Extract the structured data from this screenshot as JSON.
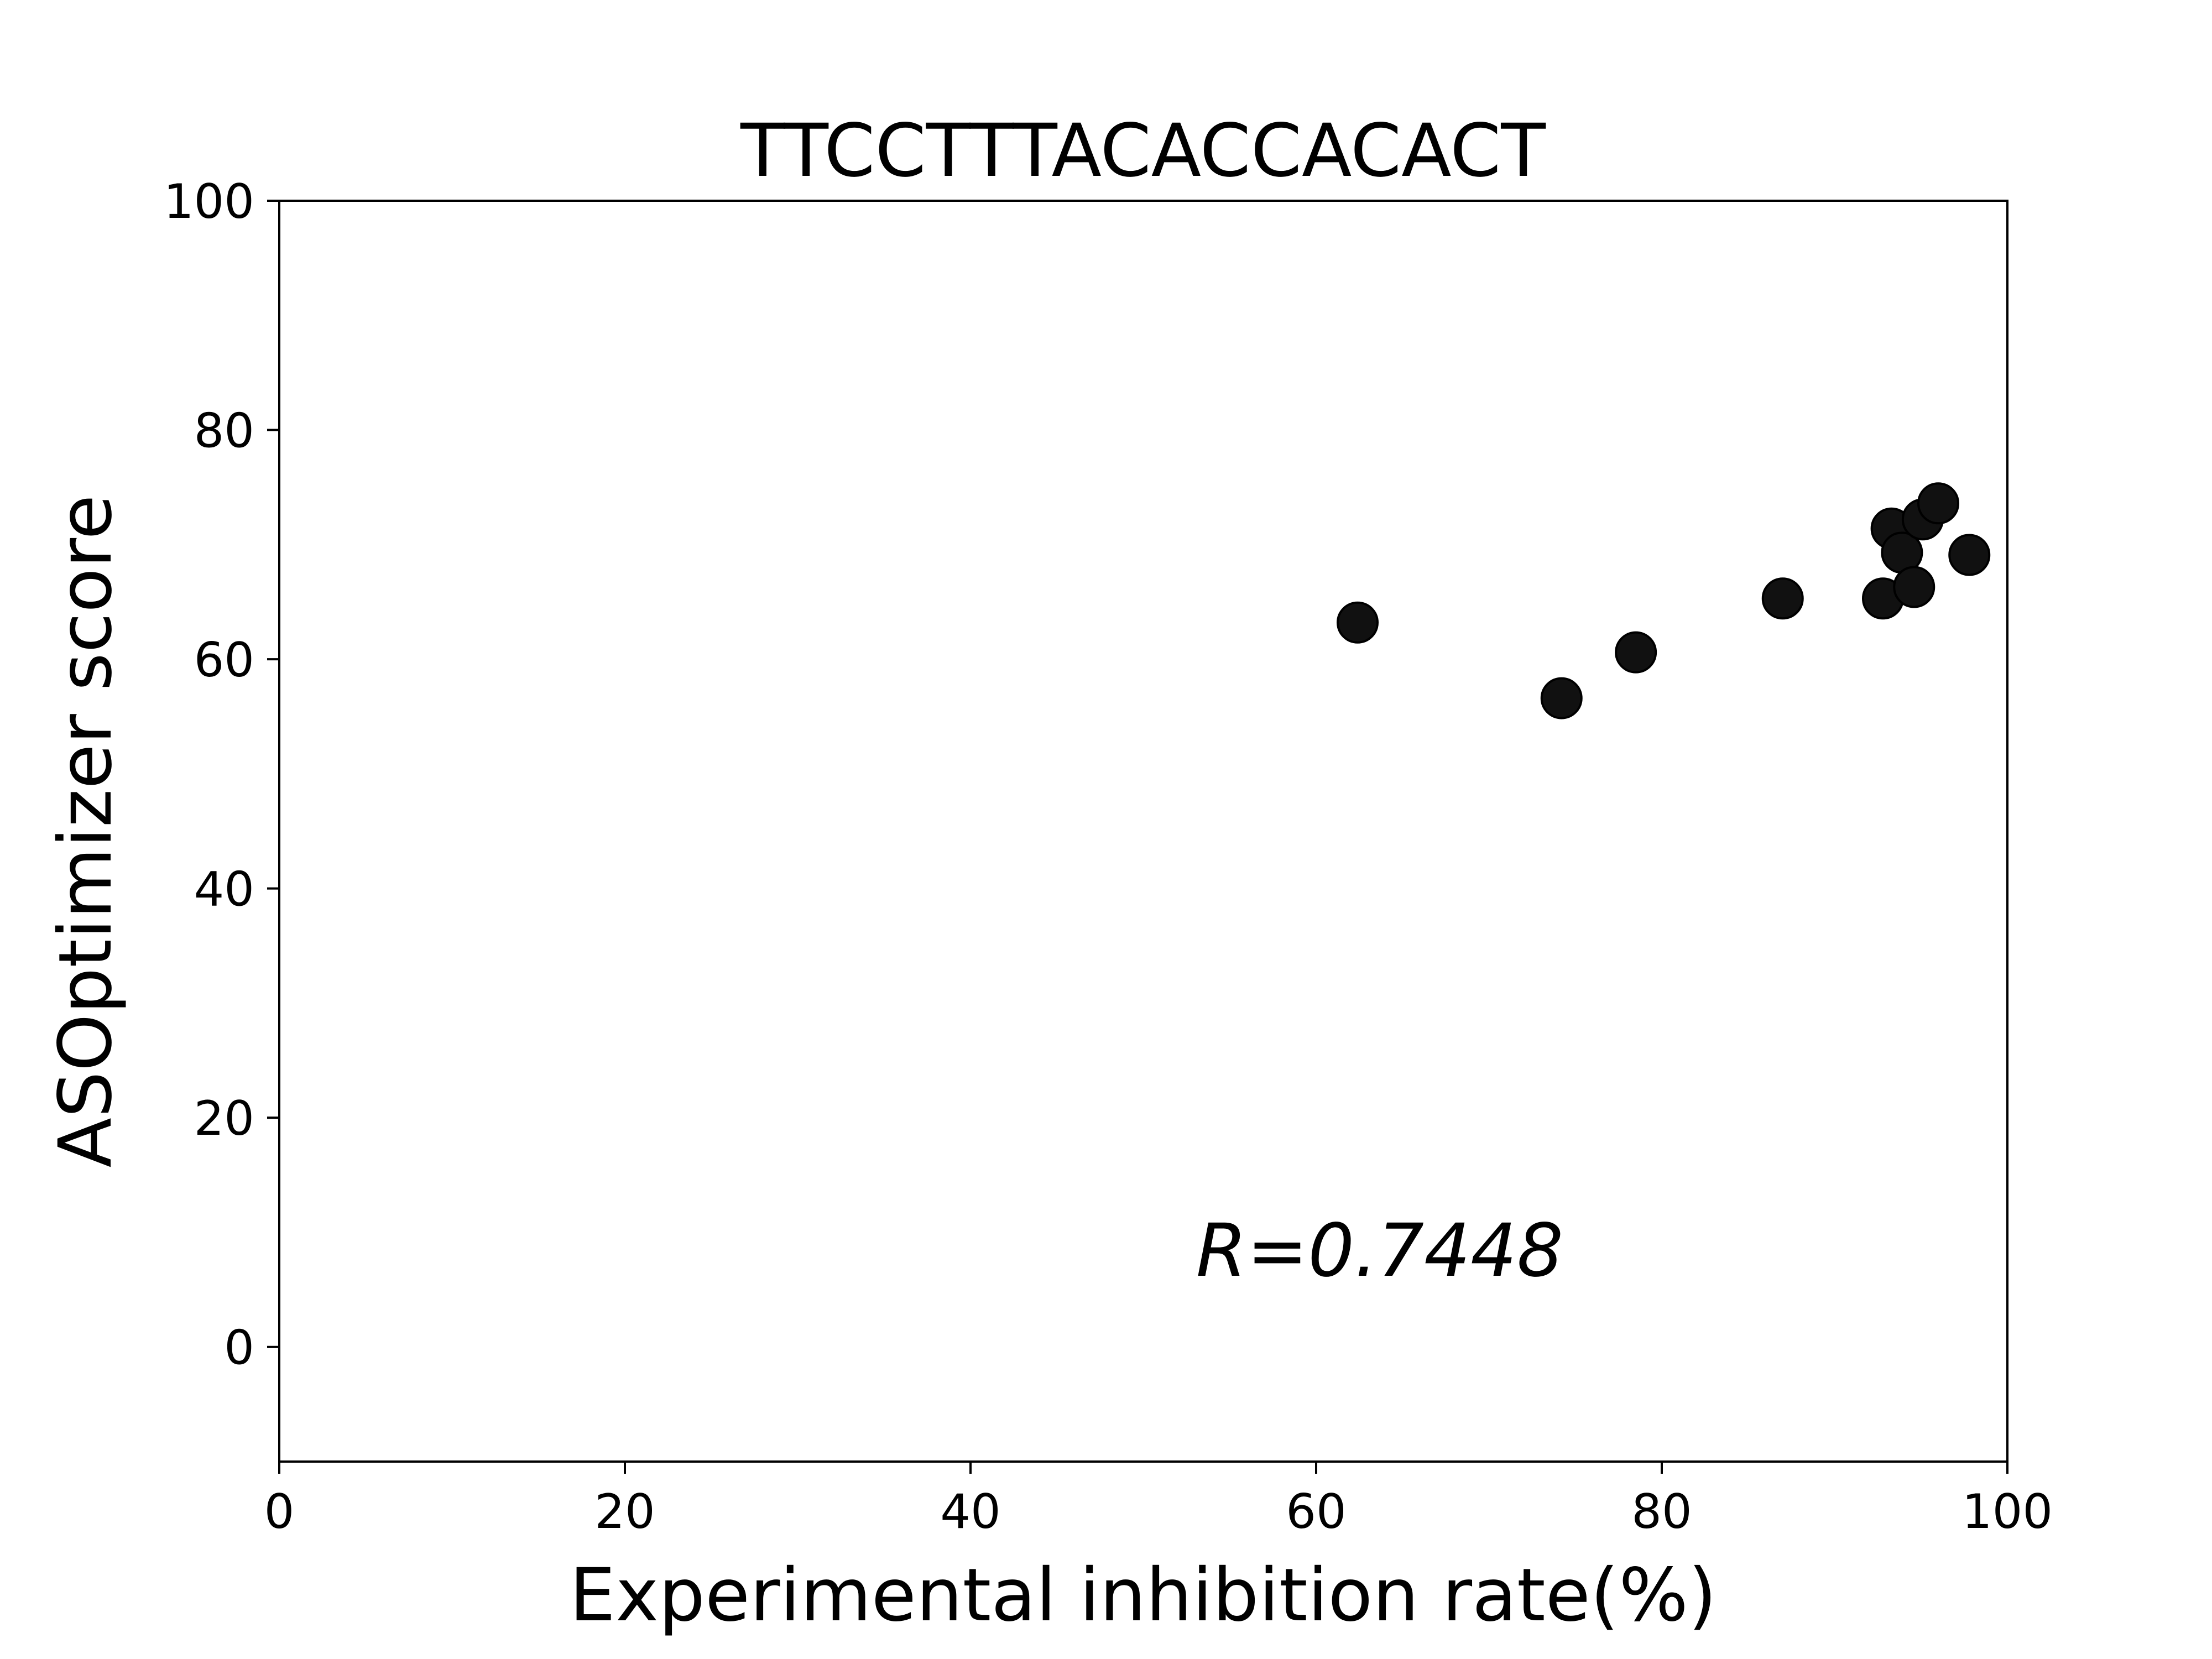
{
  "chart_data": {
    "type": "scatter",
    "title": "TTCCTTTACACCACACT",
    "xlabel": "Experimental inhibition rate(%)",
    "ylabel": "ASOptimizer score",
    "xlim": [
      0,
      100
    ],
    "ylim": [
      -10,
      100
    ],
    "xticks": [
      0,
      20,
      40,
      60,
      80,
      100
    ],
    "yticks": [
      0,
      20,
      40,
      60,
      80,
      100
    ],
    "grid": false,
    "marker_color": "#111111",
    "annotation": "R=0.7448",
    "points": [
      {
        "x": 62.4,
        "y": 63.2
      },
      {
        "x": 74.2,
        "y": 56.6
      },
      {
        "x": 78.5,
        "y": 60.6
      },
      {
        "x": 87.0,
        "y": 65.3
      },
      {
        "x": 92.8,
        "y": 65.3
      },
      {
        "x": 93.3,
        "y": 71.4
      },
      {
        "x": 93.9,
        "y": 69.3
      },
      {
        "x": 94.6,
        "y": 66.3
      },
      {
        "x": 95.1,
        "y": 72.2
      },
      {
        "x": 96.0,
        "y": 73.6
      },
      {
        "x": 97.8,
        "y": 69.1
      }
    ]
  }
}
